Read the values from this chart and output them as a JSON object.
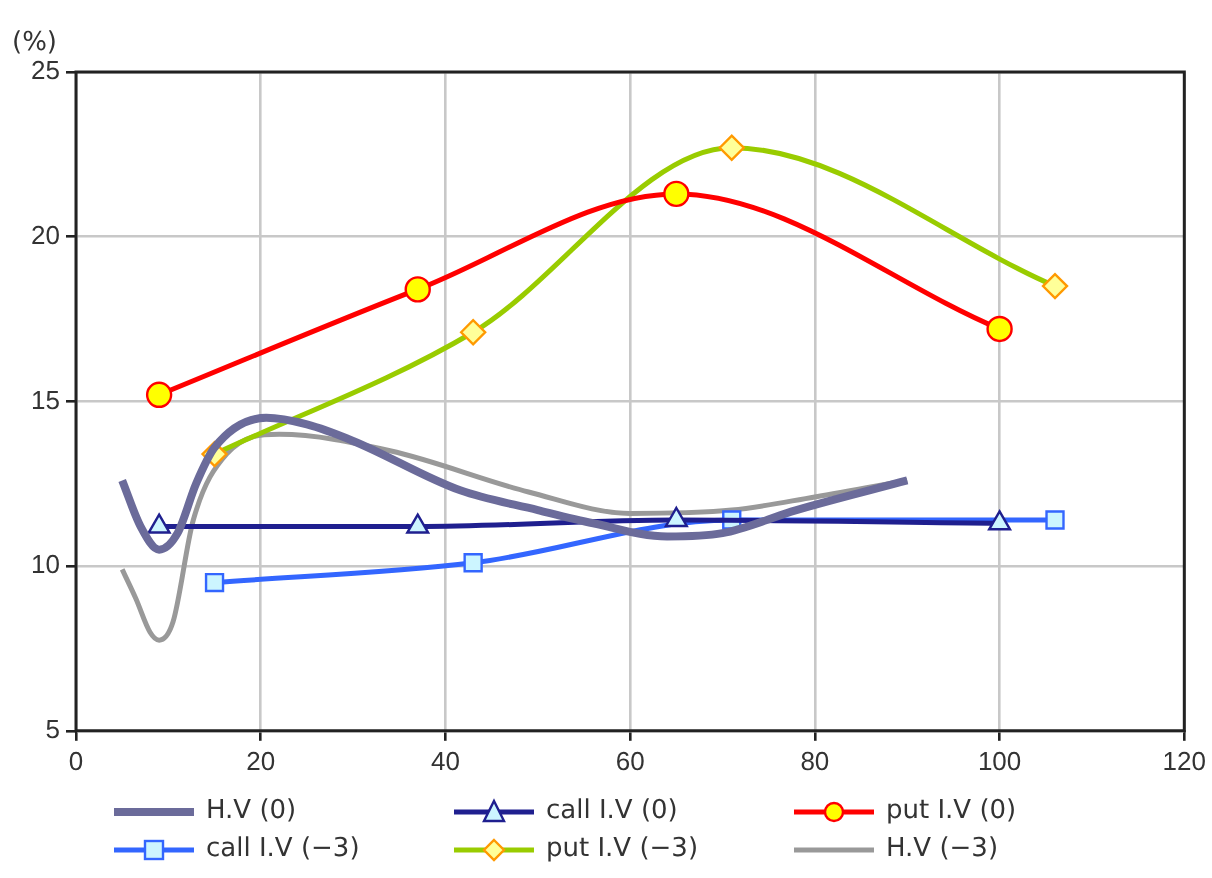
{
  "chart_data": {
    "type": "line",
    "ylabel": "(%)",
    "xlim": [
      0,
      120
    ],
    "xticks": [
      0,
      20,
      40,
      60,
      80,
      100,
      120
    ],
    "ylim": [
      5,
      25
    ],
    "yticks": [
      5,
      10,
      15,
      20,
      25
    ],
    "grid": true,
    "legend": "bottom",
    "series": [
      {
        "name": "H.V (0)",
        "color": "#6b6b9a",
        "marker": "none",
        "x": [
          5,
          7,
          9,
          11,
          13,
          15,
          20.6,
          25,
          30,
          41.6,
          50,
          56,
          64,
          70,
          78,
          90
        ],
        "values": [
          12.6,
          11.2,
          10.5,
          11.0,
          12.5,
          13.6,
          14.5,
          14.3,
          13.8,
          12.3,
          11.7,
          11.3,
          10.9,
          11.0,
          11.7,
          12.6
        ]
      },
      {
        "name": "call I.V (0)",
        "color": "#1f1f8f",
        "marker": "triangle",
        "x": [
          9,
          37,
          65,
          100
        ],
        "values": [
          11.2,
          11.2,
          11.4,
          11.3
        ]
      },
      {
        "name": "put I.V (0)",
        "color": "#ff0000",
        "marker": "circle",
        "x": [
          9,
          37,
          65,
          100
        ],
        "values": [
          15.2,
          18.4,
          21.3,
          17.2
        ]
      },
      {
        "name": "call I.V (−3)",
        "color": "#3366ff",
        "marker": "square",
        "x": [
          15,
          43,
          71,
          106
        ],
        "values": [
          9.5,
          10.1,
          11.4,
          11.4
        ]
      },
      {
        "name": "put I.V (−3)",
        "color": "#99cc00",
        "marker": "diamond",
        "x": [
          15,
          43,
          71,
          106
        ],
        "values": [
          13.4,
          17.1,
          22.7,
          18.5
        ]
      },
      {
        "name": "H.V (−3)",
        "color": "#999999",
        "marker": "none",
        "x": [
          5,
          6.5,
          8,
          9,
          10.5,
          12.7,
          16.3,
          22,
          34,
          49,
          60,
          71,
          80,
          90
        ],
        "values": [
          9.9,
          9.0,
          8.0,
          7.75,
          8.3,
          11.4,
          13.4,
          14.0,
          13.5,
          12.25,
          11.6,
          11.7,
          12.1,
          12.6
        ]
      }
    ]
  }
}
